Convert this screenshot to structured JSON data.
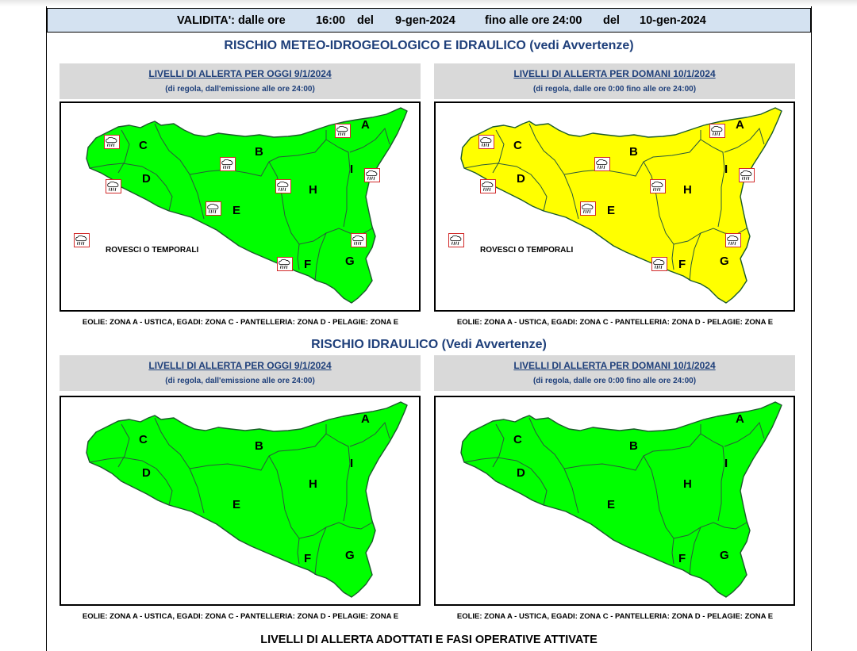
{
  "validity": {
    "label": "VALIDITA': dalle ore",
    "start_time": "16:00",
    "del1": "del",
    "start_date": "9-gen-2024",
    "until": "fino alle ore 24:00",
    "del2": "del",
    "end_date": "10-gen-2024"
  },
  "meteo": {
    "title": "RISCHIO METEO-IDROGEOLOGICO E IDRAULICO (vedi Avvertenze)",
    "panels": [
      {
        "heading": "LIVELLI DI ALLERTA PER OGGI 9/1/2024",
        "subheading": "(di regola, dall'emissione alle ore 24:00)",
        "alert_color": "#00ff00",
        "alert_level": "verde",
        "icon": "rain-shower-icon",
        "legend": "ROVESCI O TEMPORALI",
        "islands": "EOLIE: ZONA A - USTICA, EGADI: ZONA C - PANTELLERIA: ZONA D - PELAGIE: ZONA E"
      },
      {
        "heading": "LIVELLI DI ALLERTA PER DOMANI 10/1/2024",
        "subheading": "(di regola, dalle ore 0:00 fino alle ore 24:00)",
        "alert_color": "#ffff00",
        "alert_level": "gialla",
        "icon": "rain-shower-icon",
        "legend": "ROVESCI O TEMPORALI",
        "islands": "EOLIE: ZONA A - USTICA, EGADI: ZONA C - PANTELLERIA: ZONA D - PELAGIE: ZONA E"
      }
    ]
  },
  "idraulico": {
    "title": "RISCHIO IDRAULICO (Vedi Avvertenze)",
    "panels": [
      {
        "heading": "LIVELLI DI ALLERTA PER OGGI 9/1/2024",
        "subheading": "(di regola, dall'emissione alle ore 24:00)",
        "alert_color": "#00ff00",
        "alert_level": "verde",
        "islands": "EOLIE: ZONA A - USTICA, EGADI: ZONA C - PANTELLERIA: ZONA D - PELAGIE: ZONA E"
      },
      {
        "heading": "LIVELLI DI ALLERTA PER DOMANI 10/1/2024",
        "subheading": "(di regola, dalle ore 0:00 fino alle ore 24:00)",
        "alert_color": "#00ff00",
        "alert_level": "verde",
        "islands": "EOLIE: ZONA A - USTICA, EGADI: ZONA C - PANTELLERIA: ZONA D - PELAGIE: ZONA E"
      }
    ]
  },
  "zones": [
    "A",
    "B",
    "C",
    "D",
    "E",
    "F",
    "G",
    "H",
    "I"
  ],
  "footer_title": "LIVELLI DI ALLERTA ADOTTATI E FASI OPERATIVE ATTIVATE"
}
